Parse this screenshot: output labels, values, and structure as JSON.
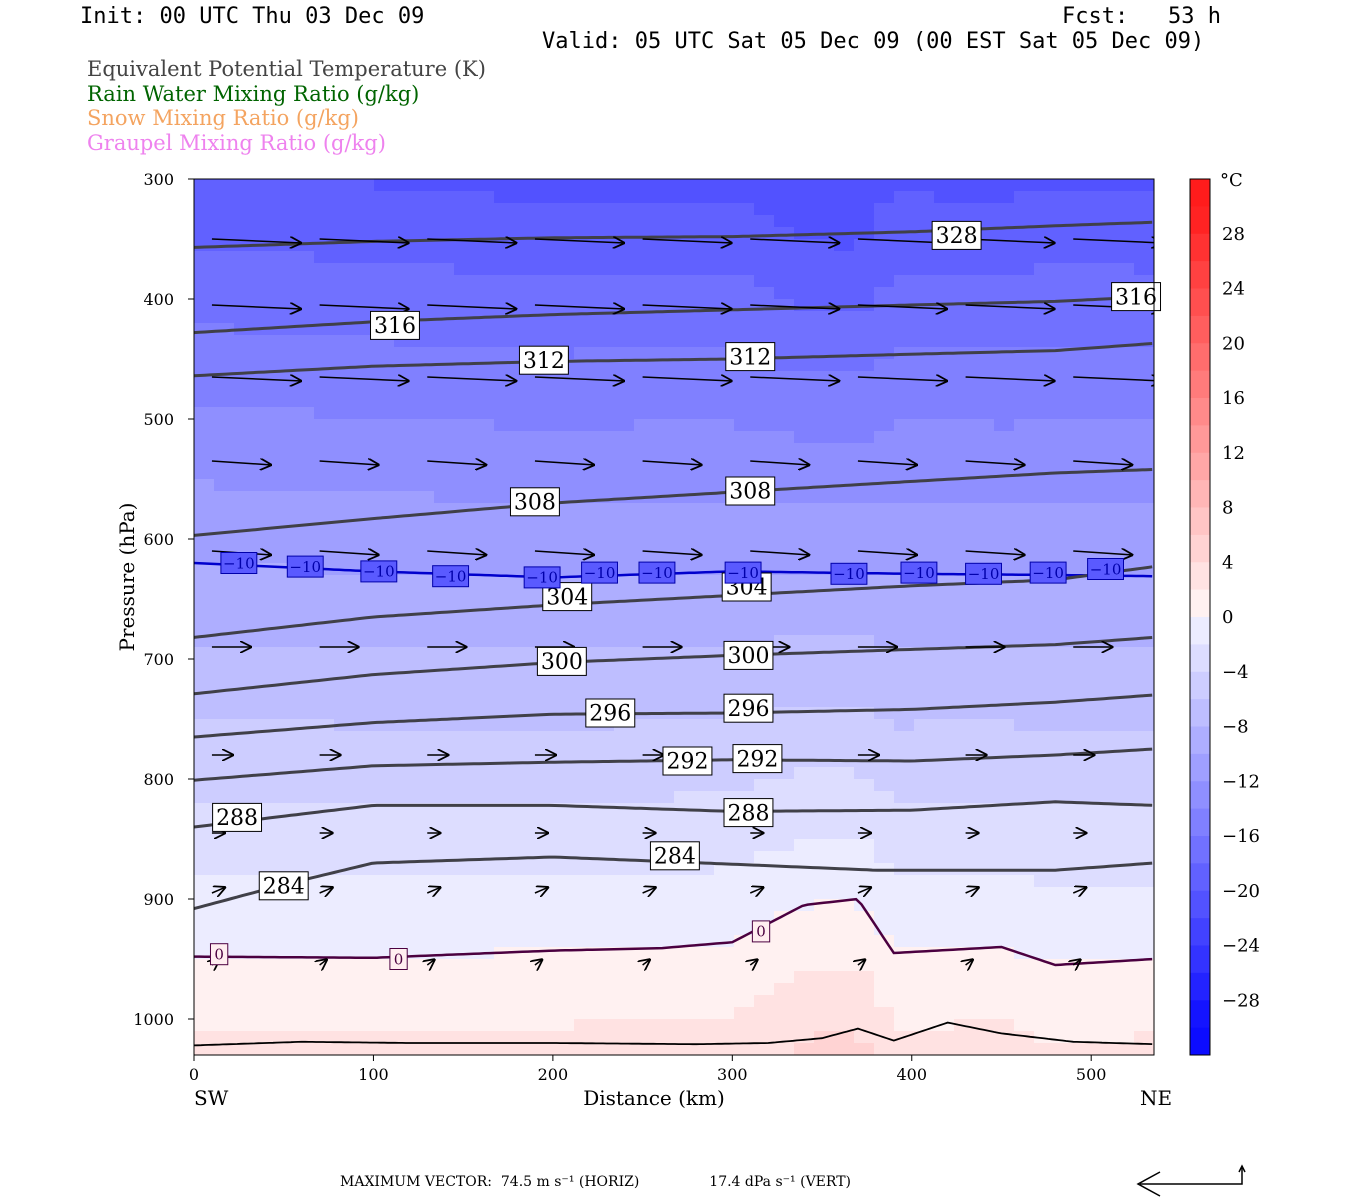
{
  "header": {
    "init": "Init: 00 UTC Thu 03 Dec 09",
    "fcst": "Fcst:   53 h",
    "valid": "Valid: 05 UTC Sat 05 Dec 09 (00 EST Sat 05 Dec 09)"
  },
  "legend": [
    {
      "label": "Equivalent Potential Temperature (K)",
      "color": "#444444"
    },
    {
      "label": "Rain Water Mixing Ratio (g/kg)",
      "color": "#006400"
    },
    {
      "label": "Snow Mixing Ratio (g/kg)",
      "color": "#f4a460"
    },
    {
      "label": "Graupel Mixing Ratio (g/kg)",
      "color": "#ee82ee"
    }
  ],
  "footer": {
    "max_vector_label": "MAXIMUM VECTOR:",
    "horiz": "74.5 m s⁻¹ (HORIZ)",
    "vert": "17.4 dPa s⁻¹ (VERT)"
  },
  "chart_data": {
    "type": "heatmap",
    "title": "",
    "xlabel": "Distance (km)",
    "ylabel": "Pressure (hPa)",
    "xlim": [
      0,
      535
    ],
    "ylim": [
      1030,
      300
    ],
    "x_ticks": [
      0,
      100,
      200,
      300,
      400,
      500
    ],
    "y_ticks": [
      300,
      400,
      500,
      600,
      700,
      800,
      900,
      1000
    ],
    "x_end_labels": {
      "left": "SW",
      "right": "NE"
    },
    "colorbar": {
      "unit": "°C",
      "tick_labels": [
        "28",
        "24",
        "20",
        "16",
        "12",
        "8",
        "4",
        "0",
        "−4",
        "−8",
        "−12",
        "−16",
        "−20",
        "−24",
        "−28"
      ],
      "range": [
        -32,
        32
      ],
      "interval": 2,
      "colors_warm": "#ff2020",
      "colors_cold": "#1010ff"
    },
    "theta_e_contours": [
      {
        "label": "328",
        "points": [
          [
            0,
            357
          ],
          [
            100,
            352
          ],
          [
            200,
            349
          ],
          [
            300,
            348
          ],
          [
            400,
            344
          ],
          [
            480,
            339
          ],
          [
            535,
            336
          ]
        ],
        "labels_at": [
          [
            425,
            347
          ]
        ]
      },
      {
        "label": "316",
        "points": [
          [
            0,
            428
          ],
          [
            100,
            419
          ],
          [
            200,
            413
          ],
          [
            300,
            409
          ],
          [
            400,
            405
          ],
          [
            480,
            402
          ],
          [
            535,
            398
          ]
        ],
        "labels_at": [
          [
            112,
            422
          ],
          [
            525,
            398
          ]
        ]
      },
      {
        "label": "312",
        "points": [
          [
            0,
            464
          ],
          [
            100,
            456
          ],
          [
            200,
            452
          ],
          [
            300,
            450
          ],
          [
            400,
            446
          ],
          [
            480,
            443
          ],
          [
            535,
            437
          ]
        ],
        "labels_at": [
          [
            195,
            451
          ],
          [
            310,
            448
          ]
        ]
      },
      {
        "label": "308",
        "points": [
          [
            0,
            597
          ],
          [
            100,
            583
          ],
          [
            200,
            570
          ],
          [
            300,
            561
          ],
          [
            400,
            552
          ],
          [
            480,
            545
          ],
          [
            535,
            542
          ]
        ],
        "labels_at": [
          [
            190,
            569
          ],
          [
            310,
            560
          ]
        ]
      },
      {
        "label": "304",
        "points": [
          [
            0,
            682
          ],
          [
            100,
            665
          ],
          [
            200,
            655
          ],
          [
            300,
            647
          ],
          [
            400,
            639
          ],
          [
            480,
            634
          ],
          [
            535,
            623
          ]
        ],
        "labels_at": [
          [
            208,
            648
          ],
          [
            308,
            640
          ]
        ]
      },
      {
        "label": "300",
        "points": [
          [
            0,
            729
          ],
          [
            100,
            713
          ],
          [
            200,
            703
          ],
          [
            300,
            697
          ],
          [
            400,
            692
          ],
          [
            480,
            688
          ],
          [
            535,
            682
          ]
        ],
        "labels_at": [
          [
            205,
            702
          ],
          [
            309,
            697
          ]
        ]
      },
      {
        "label": "296",
        "points": [
          [
            0,
            765
          ],
          [
            100,
            753
          ],
          [
            200,
            746
          ],
          [
            300,
            745
          ],
          [
            400,
            742
          ],
          [
            480,
            736
          ],
          [
            535,
            730
          ]
        ],
        "labels_at": [
          [
            232,
            745
          ],
          [
            309,
            741
          ]
        ]
      },
      {
        "label": "292",
        "points": [
          [
            0,
            801
          ],
          [
            100,
            789
          ],
          [
            200,
            786
          ],
          [
            300,
            784
          ],
          [
            400,
            785
          ],
          [
            480,
            780
          ],
          [
            535,
            775
          ]
        ],
        "labels_at": [
          [
            275,
            785
          ],
          [
            314,
            783
          ]
        ]
      },
      {
        "label": "288",
        "points": [
          [
            0,
            840
          ],
          [
            100,
            822
          ],
          [
            200,
            822
          ],
          [
            300,
            827
          ],
          [
            400,
            826
          ],
          [
            480,
            819
          ],
          [
            535,
            822
          ]
        ],
        "labels_at": [
          [
            24,
            832
          ],
          [
            309,
            828
          ]
        ]
      },
      {
        "label": "284",
        "points": [
          [
            0,
            908
          ],
          [
            50,
            888
          ],
          [
            100,
            870
          ],
          [
            200,
            865
          ],
          [
            300,
            871
          ],
          [
            380,
            876
          ],
          [
            480,
            876
          ],
          [
            535,
            870
          ]
        ],
        "labels_at": [
          [
            50,
            889
          ],
          [
            268,
            864
          ]
        ]
      }
    ],
    "temperature_isotherms": [
      {
        "label": "−10",
        "color": "#0000cc",
        "points": [
          [
            0,
            620
          ],
          [
            100,
            627
          ],
          [
            200,
            632
          ],
          [
            300,
            627
          ],
          [
            400,
            629
          ],
          [
            480,
            630
          ],
          [
            535,
            631
          ]
        ],
        "labels_at": [
          [
            25,
            620
          ],
          [
            62,
            623
          ],
          [
            103,
            627
          ],
          [
            143,
            631
          ],
          [
            194,
            632
          ],
          [
            226,
            628
          ],
          [
            258,
            628
          ],
          [
            306,
            628
          ],
          [
            365,
            629
          ],
          [
            404,
            628
          ],
          [
            440,
            629
          ],
          [
            476,
            628
          ],
          [
            508,
            625
          ]
        ]
      },
      {
        "label": "0",
        "color": "#4b0040",
        "points": [
          [
            0,
            948
          ],
          [
            100,
            949
          ],
          [
            200,
            943
          ],
          [
            260,
            941
          ],
          [
            300,
            936
          ],
          [
            340,
            905
          ],
          [
            370,
            900
          ],
          [
            390,
            945
          ],
          [
            450,
            940
          ],
          [
            480,
            955
          ],
          [
            535,
            950
          ]
        ],
        "labels_at": [
          [
            14,
            946
          ],
          [
            114,
            950
          ],
          [
            316,
            927
          ]
        ]
      }
    ],
    "wind_vectors": {
      "levels": [
        350,
        405,
        465,
        535,
        610,
        690,
        780,
        845,
        895,
        955
      ],
      "x_positions": [
        10,
        70,
        130,
        190,
        250,
        310,
        370,
        430,
        490
      ],
      "max_horizontal_m_s": 74.5,
      "max_vertical_dPa_s": 17.4
    }
  }
}
